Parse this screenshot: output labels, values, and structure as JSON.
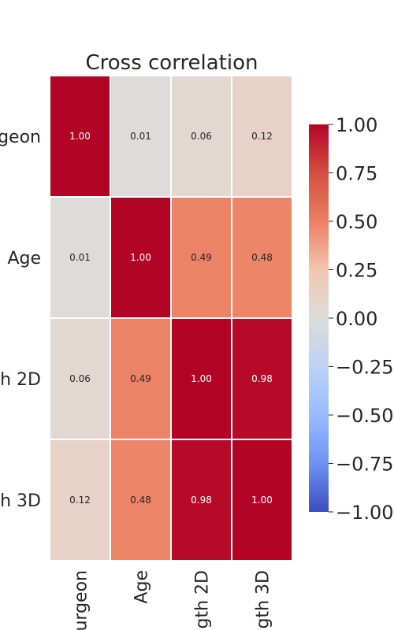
{
  "chart_data": {
    "type": "heatmap",
    "title": "Cross correlation",
    "row_labels": [
      "urgeon",
      "Age",
      "h 2D",
      "h 3D"
    ],
    "col_labels": [
      "urgeon",
      "Age",
      "gth 2D",
      "gth 3D"
    ],
    "row_labels_visible": [
      "geon",
      "Age",
      "h 2D",
      "h 3D"
    ],
    "col_labels_visible": [
      "urgeon",
      "Age",
      "gth 2D",
      "gth 3D"
    ],
    "values": [
      [
        1.0,
        0.01,
        0.06,
        0.12
      ],
      [
        0.01,
        1.0,
        0.49,
        0.48
      ],
      [
        0.06,
        0.49,
        1.0,
        0.98
      ],
      [
        0.12,
        0.48,
        0.98,
        1.0
      ]
    ],
    "value_labels": [
      [
        "1.00",
        "0.01",
        "0.06",
        "0.12"
      ],
      [
        "0.01",
        "1.00",
        "0.49",
        "0.48"
      ],
      [
        "0.06",
        "0.49",
        "1.00",
        "0.98"
      ],
      [
        "0.12",
        "0.48",
        "0.98",
        "1.00"
      ]
    ],
    "colorbar": {
      "range": [
        -1.0,
        1.0
      ],
      "ticks": [
        1.0,
        0.75,
        0.5,
        0.25,
        0.0,
        -0.25,
        -0.5,
        -0.75,
        -1.0
      ],
      "tick_labels": [
        "1.00",
        "0.75",
        "0.50",
        "0.25",
        "0.00",
        "−0.25",
        "−0.50",
        "−0.75",
        "−1.00"
      ],
      "colormap": "coolwarm"
    },
    "grid": false
  }
}
